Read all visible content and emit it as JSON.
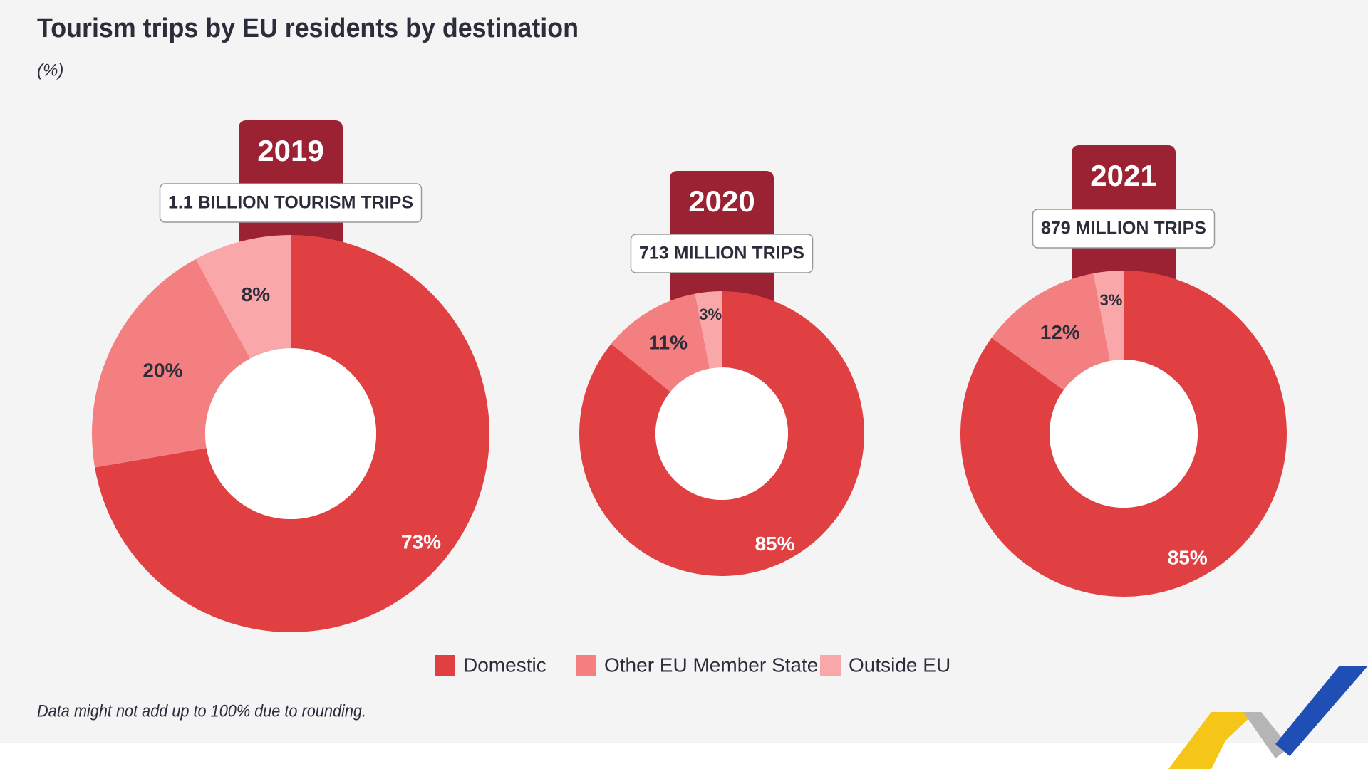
{
  "title": "Tourism trips by EU residents by destination",
  "subtitle": "(%)",
  "note": "Data might not add up to 100% due to rounding.",
  "chart_data": [
    {
      "type": "pie",
      "title": "2019",
      "subtitle": "1.1 BILLION TOURISM TRIPS",
      "categories": [
        "Domestic",
        "Other EU Member State",
        "Outside EU"
      ],
      "values": [
        73,
        20,
        8
      ],
      "value_labels": [
        "73%",
        "20%",
        "8%"
      ],
      "colors": [
        "#e04042",
        "#f47f80",
        "#f9a7a8"
      ]
    },
    {
      "type": "pie",
      "title": "2020",
      "subtitle": "713 MILLION TRIPS",
      "categories": [
        "Domestic",
        "Other EU Member State",
        "Outside EU"
      ],
      "values": [
        85,
        11,
        3
      ],
      "value_labels": [
        "85%",
        "11%",
        "3%"
      ],
      "colors": [
        "#e04042",
        "#f47f80",
        "#f9a7a8"
      ]
    },
    {
      "type": "pie",
      "title": "2021",
      "subtitle": "879 MILLION TRIPS",
      "categories": [
        "Domestic",
        "Other EU Member State",
        "Outside EU"
      ],
      "values": [
        85,
        12,
        3
      ],
      "value_labels": [
        "85%",
        "12%",
        "3%"
      ],
      "colors": [
        "#e04042",
        "#f47f80",
        "#f9a7a8"
      ]
    }
  ]
}
